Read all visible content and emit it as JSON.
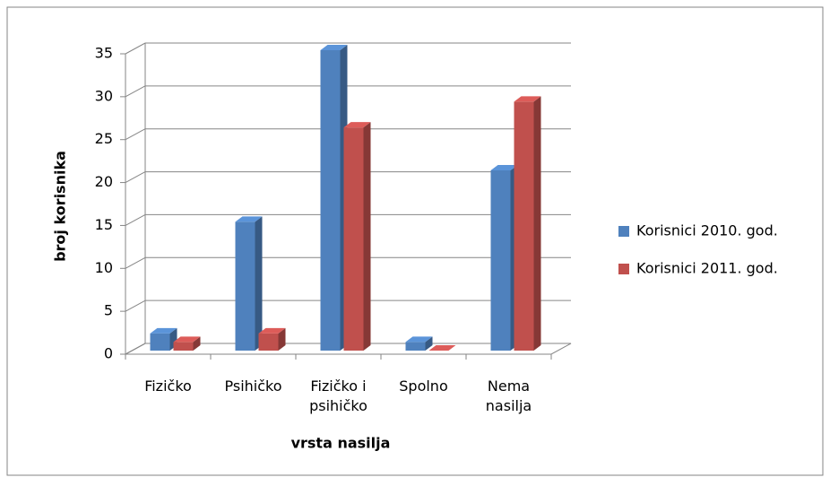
{
  "chart_data": {
    "type": "bar3d",
    "x_label": "vrsta nasilja",
    "y_label": "broj korisnika",
    "categories": [
      "Fizičko",
      "Psihičko",
      "Fizičko i psihičko",
      "Spolno",
      "Nema nasilja"
    ],
    "series": [
      {
        "name": "Korisnici 2010. god.",
        "color": "#4f81bd",
        "values": [
          2,
          15,
          35,
          1,
          21
        ]
      },
      {
        "name": "Korisnici 2011. god.",
        "color": "#c0504d",
        "values": [
          1,
          2,
          26,
          0,
          29
        ]
      }
    ],
    "ylim": [
      0,
      35
    ],
    "yticks": [
      0,
      5,
      10,
      15,
      20,
      25,
      30,
      35
    ],
    "grid": true,
    "legend": "right"
  }
}
